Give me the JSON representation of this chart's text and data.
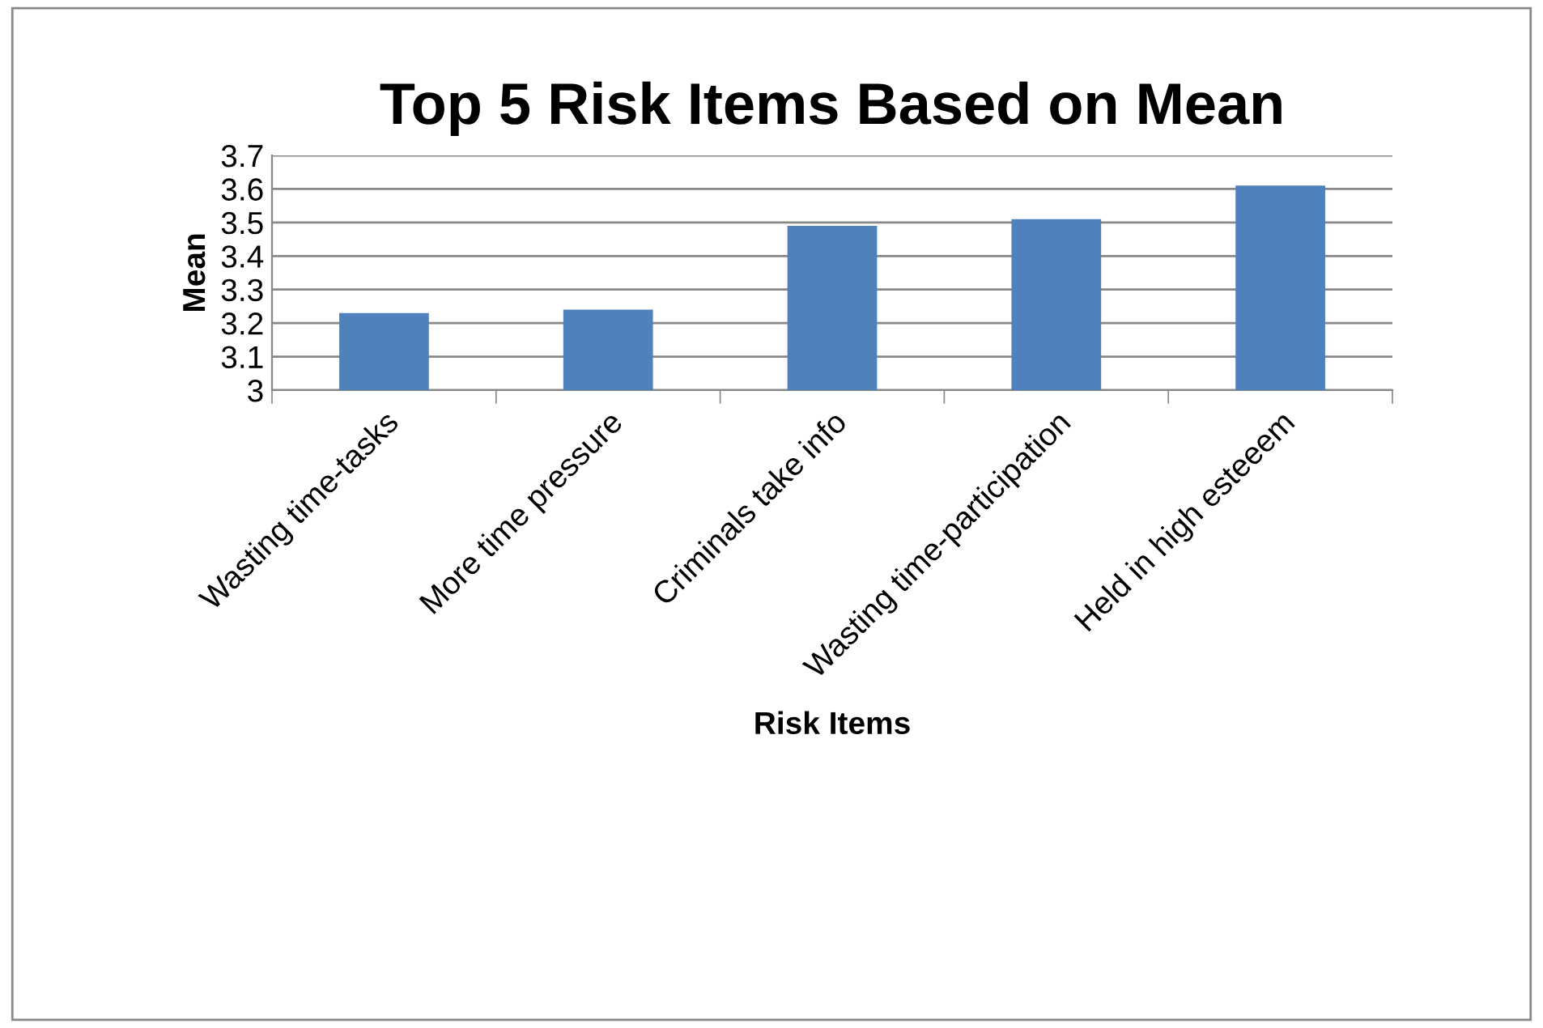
{
  "chart_data": {
    "type": "bar",
    "title": "Top 5 Risk Items Based on Mean",
    "xlabel": "Risk Items",
    "ylabel": "Mean",
    "categories": [
      "Wasting time-tasks",
      "More time pressure",
      "Criminals take info",
      "Wasting time-participation",
      "Held in high esteeem"
    ],
    "values": [
      3.23,
      3.24,
      3.49,
      3.51,
      3.61
    ],
    "color": "#4f81bd",
    "ylim": [
      3,
      3.7
    ],
    "yticks": [
      {
        "value": 3,
        "label": "3"
      },
      3.1,
      3.2,
      3.3,
      3.4,
      3.5,
      3.6,
      3.7
    ],
    "grid": "y",
    "legend": false
  }
}
